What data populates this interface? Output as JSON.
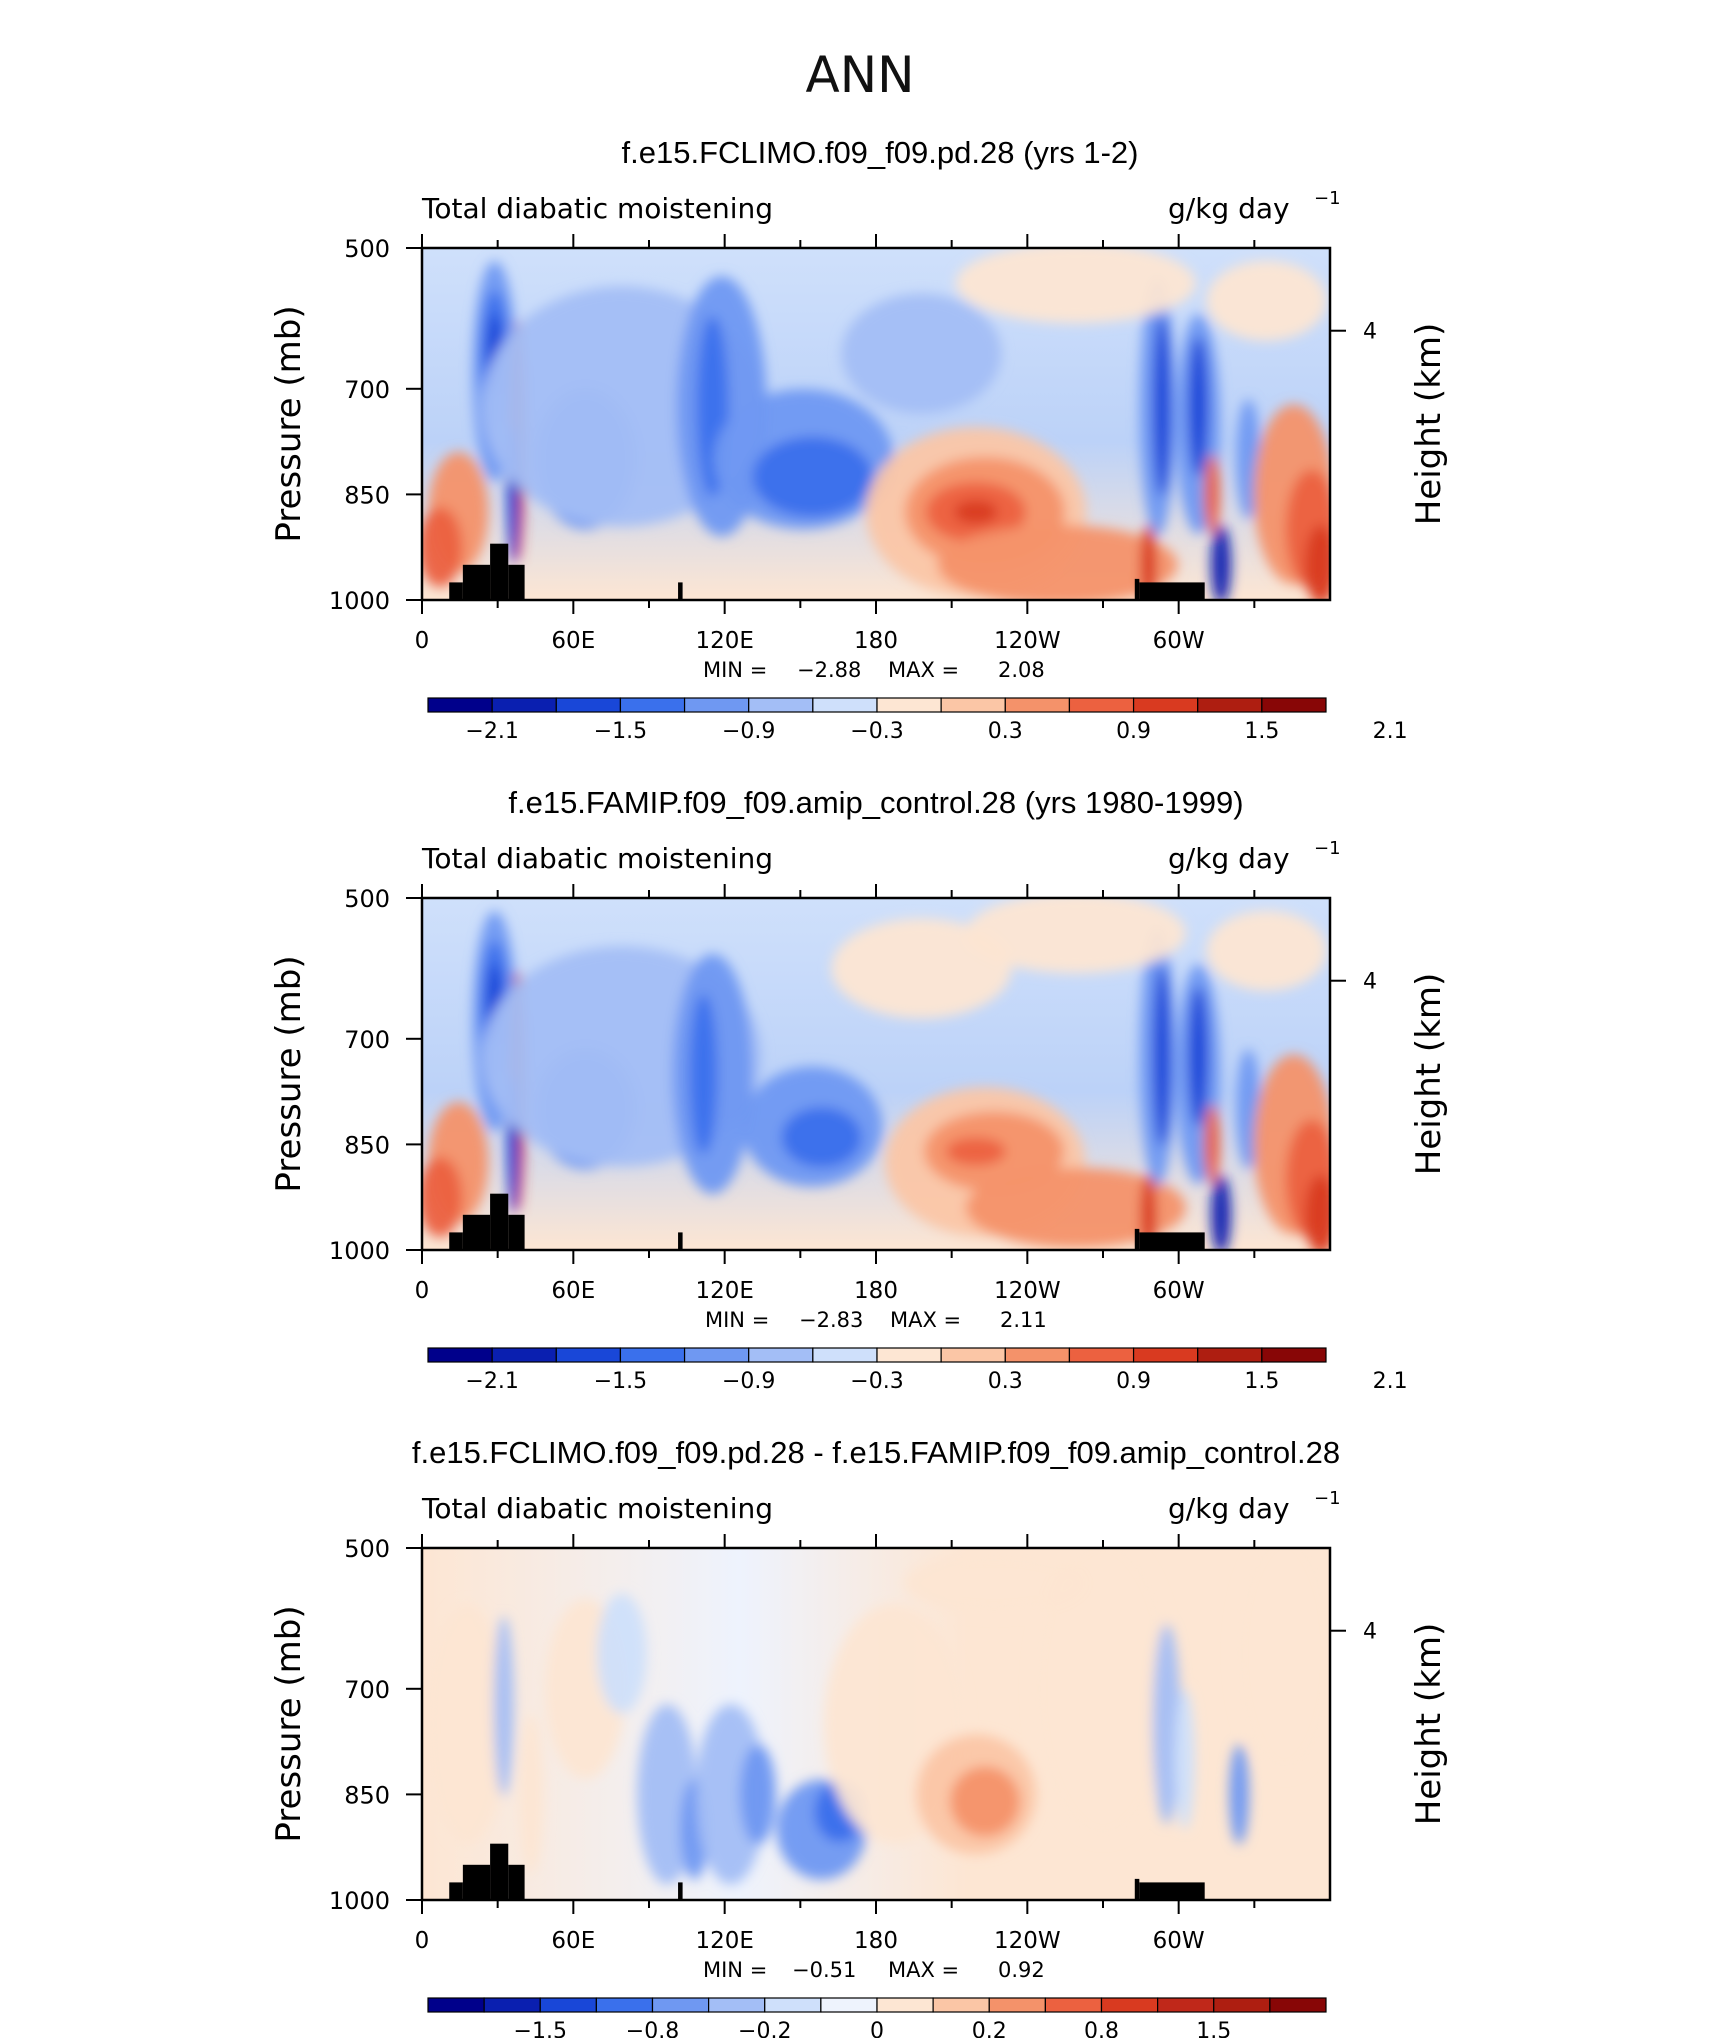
{
  "figure": {
    "season": "ANN"
  },
  "chart_data": [
    {
      "type": "heatmap",
      "title": "f.e15.FCLIMO.f09_f09.pd.28 (yrs 1-2)",
      "left_label": "Total diabatic moistening",
      "units": "g/kg day",
      "units_exp": "−1",
      "ylabel": "Pressure (mb)",
      "ylabel_right": "Height (km)",
      "xticks": [
        "0",
        "60E",
        "120E",
        "180",
        "120W",
        "60W"
      ],
      "yticks": [
        "500",
        "700",
        "850",
        "1000"
      ],
      "right_ticks": [
        "4"
      ],
      "ylim": [
        1000,
        500
      ],
      "min_label": "MIN =",
      "min_value": "−2.88",
      "max_label": "MAX =",
      "max_value": "2.08",
      "colorbar": {
        "labels": [
          "−2.1",
          "−1.5",
          "−0.9",
          "−0.3",
          "0.3",
          "0.9",
          "1.5",
          "2.1"
        ]
      }
    },
    {
      "type": "heatmap",
      "title": "f.e15.FAMIP.f09_f09.amip_control.28 (yrs 1980-1999)",
      "left_label": "Total diabatic moistening",
      "units": "g/kg day",
      "units_exp": "−1",
      "ylabel": "Pressure (mb)",
      "ylabel_right": "Height (km)",
      "xticks": [
        "0",
        "60E",
        "120E",
        "180",
        "120W",
        "60W"
      ],
      "yticks": [
        "500",
        "700",
        "850",
        "1000"
      ],
      "right_ticks": [
        "4"
      ],
      "ylim": [
        1000,
        500
      ],
      "min_label": "MIN =",
      "min_value": "−2.83",
      "max_label": "MAX =",
      "max_value": "2.11",
      "colorbar": {
        "labels": [
          "−2.1",
          "−1.5",
          "−0.9",
          "−0.3",
          "0.3",
          "0.9",
          "1.5",
          "2.1"
        ]
      }
    },
    {
      "type": "heatmap",
      "title": "f.e15.FCLIMO.f09_f09.pd.28 - f.e15.FAMIP.f09_f09.amip_control.28",
      "left_label": "Total diabatic moistening",
      "units": "g/kg day",
      "units_exp": "−1",
      "ylabel": "Pressure (mb)",
      "ylabel_right": "Height (km)",
      "xticks": [
        "0",
        "60E",
        "120E",
        "180",
        "120W",
        "60W"
      ],
      "yticks": [
        "500",
        "700",
        "850",
        "1000"
      ],
      "right_ticks": [
        "4"
      ],
      "ylim": [
        1000,
        500
      ],
      "min_label": "MIN =",
      "min_value": "−0.51",
      "max_label": "MAX =",
      "max_value": "0.92",
      "colorbar": {
        "labels": [
          "−1.5",
          "−0.8",
          "−0.2",
          "0",
          "0.2",
          "0.8",
          "1.5"
        ]
      }
    }
  ],
  "colors": {
    "palette": [
      "#00008b",
      "#0a1fb0",
      "#1947d8",
      "#3a70ec",
      "#6f98f2",
      "#a3bef6",
      "#cfe0fb",
      "#fde6d3",
      "#fbc6a6",
      "#f4926a",
      "#ec6140",
      "#d93a20",
      "#ae1e11",
      "#880606"
    ],
    "topography": "#000000"
  }
}
